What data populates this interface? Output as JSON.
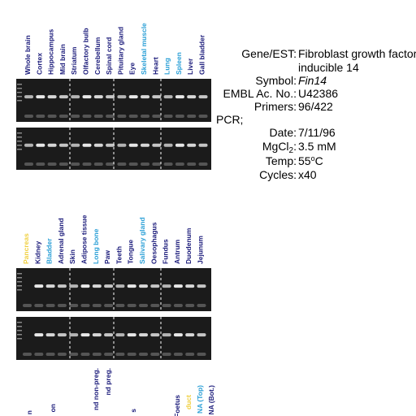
{
  "panel_1": {
    "lanes": [
      {
        "text": "Whole brain",
        "color": "#1a1a7a"
      },
      {
        "text": "Cortex",
        "color": "#1a1a7a"
      },
      {
        "text": "Hippocampus",
        "color": "#1a1a7a"
      },
      {
        "text": "Mid brain",
        "color": "#1a1a7a"
      },
      {
        "text": "Striatum",
        "color": "#1a1a7a"
      },
      {
        "text": "Olfactory bulb",
        "color": "#1a1a7a"
      },
      {
        "text": "Cerebellum",
        "color": "#1a1a7a"
      },
      {
        "text": "Spinal cord",
        "color": "#1a1a7a"
      },
      {
        "text": "Pituitary gland",
        "color": "#1a1a7a"
      },
      {
        "text": "Eye",
        "color": "#1a1a7a"
      },
      {
        "text": "Skeletal muscle",
        "color": "#2a9fd6"
      },
      {
        "text": "Heart",
        "color": "#1a1a7a"
      },
      {
        "text": "Lung",
        "color": "#2a9fd6"
      },
      {
        "text": "Spleen",
        "color": "#2a9fd6"
      },
      {
        "text": "Liver",
        "color": "#1a1a7a"
      },
      {
        "text": "Gall bladder",
        "color": "#1a1a7a"
      }
    ]
  },
  "panel_2": {
    "lanes": [
      {
        "text": "Pancreas",
        "color": "#f0d040"
      },
      {
        "text": "Kidney",
        "color": "#1a1a7a"
      },
      {
        "text": "Bladder",
        "color": "#2a9fd6"
      },
      {
        "text": "Adrenal gland",
        "color": "#1a1a7a"
      },
      {
        "text": "Skin",
        "color": "#1a1a7a"
      },
      {
        "text": "Adipose tissue",
        "color": "#1a1a7a"
      },
      {
        "text": "Long bone",
        "color": "#2a9fd6"
      },
      {
        "text": "Paw",
        "color": "#1a1a7a"
      },
      {
        "text": "Teeth",
        "color": "#1a1a7a"
      },
      {
        "text": "Tongue",
        "color": "#1a1a7a"
      },
      {
        "text": "Salivary gland",
        "color": "#2a9fd6"
      },
      {
        "text": "Oesophagus",
        "color": "#1a1a7a"
      },
      {
        "text": "Fundus",
        "color": "#1a1a7a"
      },
      {
        "text": "Antrum",
        "color": "#1a1a7a"
      },
      {
        "text": "Duodenum",
        "color": "#1a1a7a"
      },
      {
        "text": "Jejunum",
        "color": "#1a1a7a"
      }
    ]
  },
  "panel_3": {
    "lanes": [
      {
        "text": "n",
        "color": "#1a1a7a"
      },
      {
        "text": "on",
        "color": "#1a1a7a"
      },
      {
        "text": "nd non-preg.",
        "color": "#1a1a7a"
      },
      {
        "text": "nd preg.",
        "color": "#1a1a7a"
      },
      {
        "text": "s",
        "color": "#1a1a7a"
      },
      {
        "text": "Foetus",
        "color": "#1a1a7a"
      },
      {
        "text": "duct",
        "color": "#f0d040"
      },
      {
        "text": "NA (Top)",
        "color": "#2a9fd6"
      },
      {
        "text": "NA (Bot.)",
        "color": "#1a1a7a"
      }
    ]
  },
  "info": {
    "gene_label": "Gene/EST:",
    "gene_value": "Fibroblast growth factor",
    "gene_value_2": "inducible 14",
    "symbol_label": "Symbol:",
    "symbol_value": "Fin14",
    "embl_label": "EMBL Ac. No.:",
    "embl_value": "U42386",
    "primers_label": "Primers:",
    "primers_value": "96/422",
    "pcr_label": "PCR;",
    "date_label": "Date:",
    "date_value": "7/11/96",
    "mgcl_label": "MgCl",
    "mgcl_sub": "2",
    "mgcl_colon": ":",
    "mgcl_value": "3.5 mM",
    "temp_label": "Temp:",
    "temp_value": "55",
    "temp_sup": "o",
    "temp_unit": "C",
    "cycles_label": "Cycles:",
    "cycles_value": "x40"
  }
}
